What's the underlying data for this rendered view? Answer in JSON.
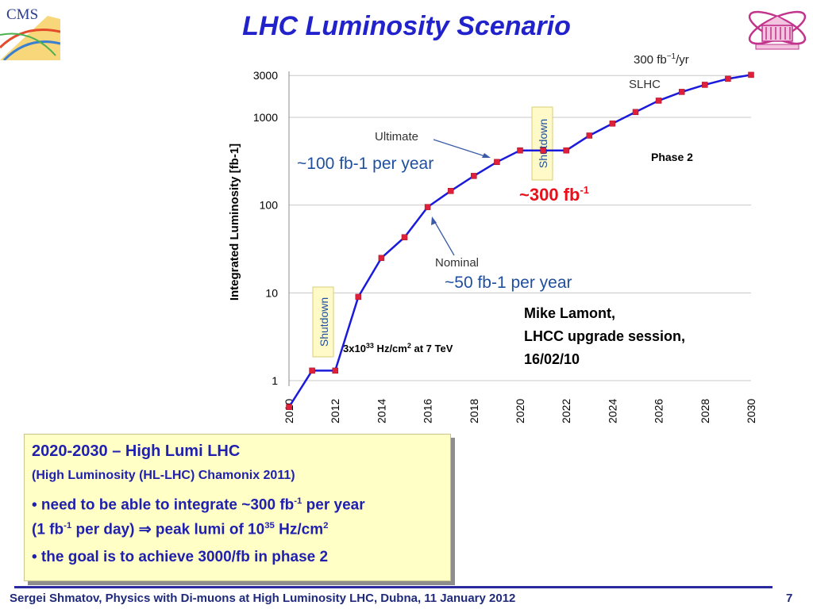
{
  "slide": {
    "title": "LHC Luminosity Scenario",
    "logo_left_text": "CMS",
    "phase2_label": "Phase 2",
    "target_label": "~300 fb",
    "target_exp": "-1",
    "rate_label": "300 fb",
    "rate_exp": "−1",
    "rate_unit": "/yr",
    "slhc_label": "SLHC",
    "ultimate_label": "Ultimate",
    "ultimate_rate": "~100 fb-1 per year",
    "nominal_label": "Nominal",
    "nominal_rate": "~50 fb-1 per year",
    "shutdown_label": "Shutdown",
    "condition_prefix": "3x10",
    "condition_exp": "33",
    "condition_mid": " Hz/cm",
    "condition_exp2": "2",
    "condition_suffix": " at 7 TeV",
    "credit": [
      "Mike Lamont,",
      "LHCC upgrade session,",
      "16/02/10"
    ]
  },
  "callout": {
    "heading": "2020-2030 – High Lumi LHC",
    "subheading": "(High Luminosity (HL-LHC) Chamonix 2011)",
    "bullet1_a": "• need to be able to integrate ~300 fb",
    "bullet1_exp1": "-1",
    "bullet1_b": " per year",
    "bullet1_c": "(1 fb",
    "bullet1_exp2": "-1",
    "bullet1_d": " per day) ⇒ peak lumi of 10",
    "bullet1_exp3": "35",
    "bullet1_e": " Hz/cm",
    "bullet1_exp4": "2",
    "bullet2": "• the goal is to achieve 3000/fb in phase 2"
  },
  "footer": {
    "text": "Sergei Shmatov, Physics with Di-muons at High Luminosity LHC, Dubna, 11 January 2012",
    "page": "7"
  },
  "colors": {
    "title": "#2222cc",
    "line": "#1a1adc",
    "marker": "#e0203a",
    "target": "#e8101a",
    "rate": "#1f4f9e"
  },
  "chart_data": {
    "type": "line",
    "ylabel": "Integrated Luminosity [fb-1]",
    "yscale": "log",
    "ylim": [
      0.3,
      3000
    ],
    "xlim": [
      2010,
      2030
    ],
    "yticks": [
      "1",
      "10",
      "100",
      "1000",
      "3000"
    ],
    "xticks": [
      "2010",
      "2012",
      "2014",
      "2016",
      "2018",
      "2020",
      "2022",
      "2024",
      "2026",
      "2028",
      "2030"
    ],
    "x": [
      2010,
      2011,
      2012,
      2013,
      2014,
      2015,
      2016,
      2017,
      2018,
      2019,
      2020,
      2021,
      2022,
      2023,
      2024,
      2025,
      2026,
      2027,
      2028,
      2029,
      2030
    ],
    "values": [
      0.5,
      1.3,
      1.3,
      9,
      25,
      43,
      95,
      145,
      215,
      310,
      420,
      420,
      420,
      620,
      850,
      1150,
      1550,
      1950,
      2350,
      2750,
      3050
    ]
  }
}
